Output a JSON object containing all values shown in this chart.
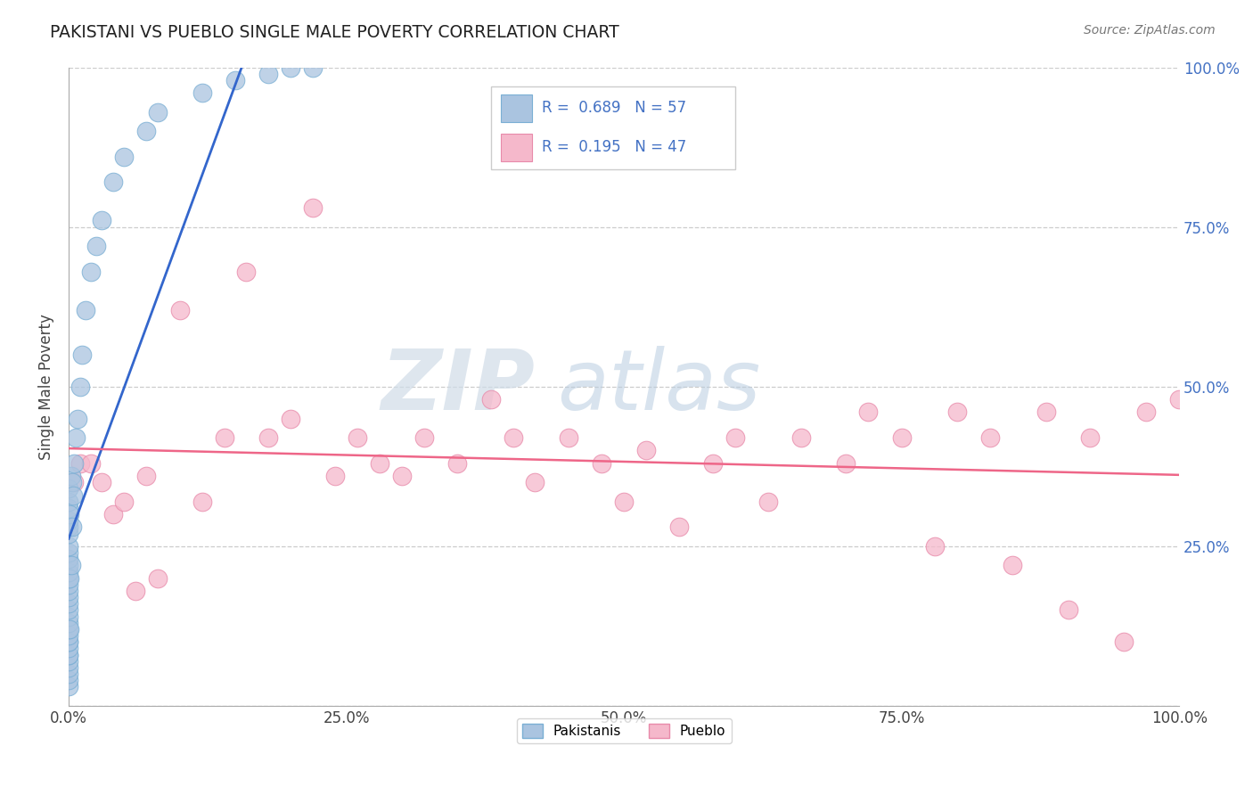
{
  "title": "PAKISTANI VS PUEBLO SINGLE MALE POVERTY CORRELATION CHART",
  "source": "Source: ZipAtlas.com",
  "ylabel": "Single Male Poverty",
  "watermark_zip": "ZIP",
  "watermark_atlas": "atlas",
  "blue_R": 0.689,
  "blue_N": 57,
  "pink_R": 0.195,
  "pink_N": 47,
  "blue_color": "#aac4e0",
  "blue_edge": "#7aafd4",
  "pink_color": "#f5b8cb",
  "pink_edge": "#e88aaa",
  "blue_line_color": "#3366cc",
  "pink_line_color": "#ee6688",
  "legend_border": "#cccccc",
  "grid_color": "#cccccc",
  "right_tick_color": "#4472c4",
  "pakistani_x": [
    0.0,
    0.0,
    0.0,
    0.0,
    0.0,
    0.0,
    0.0,
    0.0,
    0.0,
    0.0,
    0.0,
    0.0,
    0.0,
    0.0,
    0.0,
    0.0,
    0.0,
    0.0,
    0.0,
    0.0,
    0.0,
    0.0,
    0.0,
    0.0,
    0.0,
    0.0,
    0.0,
    0.0,
    0.0,
    0.0,
    0.0,
    0.1,
    0.1,
    0.1,
    0.2,
    0.2,
    0.3,
    0.3,
    0.4,
    0.5,
    0.6,
    0.8,
    1.0,
    1.2,
    1.5,
    2.0,
    2.5,
    3.0,
    4.0,
    5.0,
    7.0,
    8.0,
    12.0,
    15.0,
    18.0,
    20.0,
    22.0
  ],
  "pakistani_y": [
    0.03,
    0.04,
    0.05,
    0.06,
    0.07,
    0.08,
    0.08,
    0.09,
    0.1,
    0.1,
    0.11,
    0.12,
    0.13,
    0.14,
    0.15,
    0.16,
    0.17,
    0.18,
    0.19,
    0.2,
    0.21,
    0.22,
    0.23,
    0.24,
    0.25,
    0.27,
    0.28,
    0.29,
    0.31,
    0.32,
    0.34,
    0.12,
    0.2,
    0.3,
    0.22,
    0.36,
    0.28,
    0.35,
    0.33,
    0.38,
    0.42,
    0.45,
    0.5,
    0.55,
    0.62,
    0.68,
    0.72,
    0.76,
    0.82,
    0.86,
    0.9,
    0.93,
    0.96,
    0.98,
    0.99,
    1.0,
    1.0
  ],
  "pueblo_x": [
    0.5,
    1.0,
    2.0,
    3.0,
    4.0,
    5.0,
    6.0,
    7.0,
    8.0,
    10.0,
    12.0,
    14.0,
    16.0,
    18.0,
    20.0,
    22.0,
    24.0,
    26.0,
    28.0,
    30.0,
    32.0,
    35.0,
    38.0,
    40.0,
    42.0,
    45.0,
    48.0,
    50.0,
    52.0,
    55.0,
    58.0,
    60.0,
    63.0,
    66.0,
    70.0,
    72.0,
    75.0,
    78.0,
    80.0,
    83.0,
    85.0,
    88.0,
    90.0,
    92.0,
    95.0,
    97.0,
    100.0
  ],
  "pueblo_y": [
    0.35,
    0.38,
    0.38,
    0.35,
    0.3,
    0.32,
    0.18,
    0.36,
    0.2,
    0.62,
    0.32,
    0.42,
    0.68,
    0.42,
    0.45,
    0.78,
    0.36,
    0.42,
    0.38,
    0.36,
    0.42,
    0.38,
    0.48,
    0.42,
    0.35,
    0.42,
    0.38,
    0.32,
    0.4,
    0.28,
    0.38,
    0.42,
    0.32,
    0.42,
    0.38,
    0.46,
    0.42,
    0.25,
    0.46,
    0.42,
    0.22,
    0.46,
    0.15,
    0.42,
    0.1,
    0.46,
    0.48
  ],
  "xlim": [
    0,
    100
  ],
  "ylim": [
    0,
    1.0
  ],
  "xtick_positions": [
    0,
    25,
    50,
    75,
    100
  ],
  "ytick_positions": [
    0.0,
    0.25,
    0.5,
    0.75,
    1.0
  ],
  "xticklabels": [
    "0.0%",
    "25.0%",
    "50.0%",
    "75.0%",
    "100.0%"
  ],
  "ytick_right_labels": [
    "",
    "25.0%",
    "50.0%",
    "75.0%",
    "100.0%"
  ]
}
